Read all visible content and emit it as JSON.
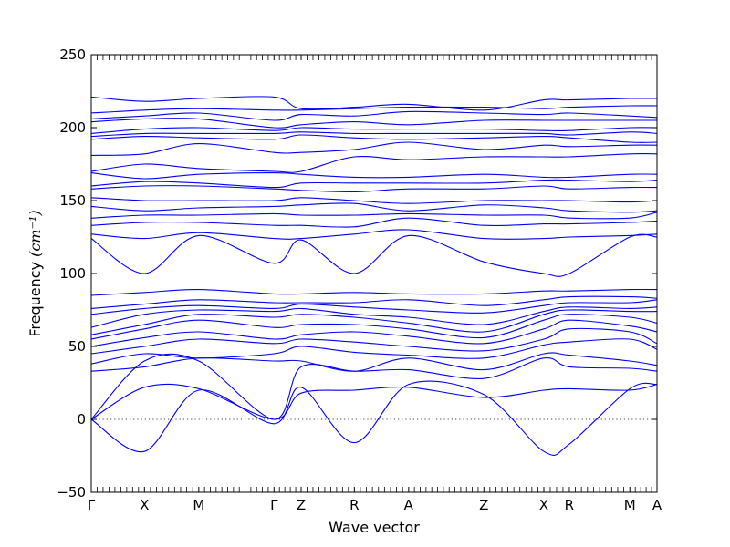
{
  "chart_data": {
    "type": "line",
    "title": "",
    "xlabel": "Wave vector",
    "ylabel": "Frequency",
    "ylabel_unit_tex": "(cm⁻¹)",
    "ylim": [
      -50,
      250
    ],
    "yticks": [
      -50,
      0,
      50,
      100,
      150,
      200,
      250
    ],
    "grid": false,
    "legend": "none",
    "line_color": "#0000ff",
    "zero_line": {
      "y": 0,
      "style": "dotted"
    },
    "high_symmetry_points": [
      {
        "label": "Γ",
        "path_pos": 0.0
      },
      {
        "label": "X",
        "path_pos": 0.094
      },
      {
        "label": "M",
        "path_pos": 0.19
      },
      {
        "label": "Γ",
        "path_pos": 0.323
      },
      {
        "label": "Z",
        "path_pos": 0.371
      },
      {
        "label": "R",
        "path_pos": 0.465
      },
      {
        "label": "A",
        "path_pos": 0.561
      },
      {
        "label": "Z",
        "path_pos": 0.694
      },
      {
        "label": "X",
        "path_pos": 0.8
      },
      {
        "label": "R",
        "path_pos": 0.845
      },
      {
        "label": "M",
        "path_pos": 0.952
      },
      {
        "label": "A",
        "path_pos": 1.0
      }
    ],
    "bands": [
      {
        "x": [
          0,
          0.094,
          0.19,
          0.323,
          0.371,
          0.465,
          0.561,
          0.694,
          0.8,
          0.845,
          0.952,
          1
        ],
        "y": [
          0,
          -22,
          20,
          -3,
          22,
          -16,
          24,
          17,
          -22,
          -17,
          21,
          24
        ]
      },
      {
        "x": [
          0,
          0.094,
          0.19,
          0.323,
          0.371,
          0.465,
          0.561,
          0.694,
          0.8,
          0.845,
          0.952,
          1
        ],
        "y": [
          0,
          22,
          21,
          0,
          18,
          20,
          22,
          15,
          20,
          21,
          20,
          24
        ]
      },
      {
        "x": [
          0,
          0.094,
          0.19,
          0.323,
          0.371,
          0.465,
          0.561,
          0.694,
          0.8,
          0.845,
          0.952,
          1
        ],
        "y": [
          0,
          40,
          40,
          0,
          36,
          33,
          34,
          28,
          42,
          36,
          35,
          33
        ]
      },
      {
        "x": [
          0,
          0.094,
          0.19,
          0.323,
          0.371,
          0.465,
          0.561,
          0.694,
          0.8,
          0.845,
          0.952,
          1
        ],
        "y": [
          33,
          36,
          42,
          40,
          40,
          33,
          42,
          34,
          45,
          44,
          40,
          37
        ]
      },
      {
        "x": [
          0,
          0.094,
          0.19,
          0.323,
          0.371,
          0.465,
          0.561,
          0.694,
          0.8,
          0.845,
          0.952,
          1
        ],
        "y": [
          38,
          45,
          42,
          45,
          50,
          46,
          44,
          42,
          51,
          53,
          55,
          48
        ]
      },
      {
        "x": [
          0,
          0.094,
          0.19,
          0.323,
          0.371,
          0.465,
          0.561,
          0.694,
          0.8,
          0.845,
          0.952,
          1
        ],
        "y": [
          45,
          50,
          55,
          52,
          55,
          53,
          50,
          47,
          55,
          62,
          60,
          52
        ]
      },
      {
        "x": [
          0,
          0.094,
          0.19,
          0.323,
          0.371,
          0.465,
          0.561,
          0.694,
          0.8,
          0.845,
          0.952,
          1
        ],
        "y": [
          50,
          56,
          60,
          55,
          58,
          60,
          57,
          52,
          62,
          68,
          64,
          60
        ]
      },
      {
        "x": [
          0,
          0.094,
          0.19,
          0.323,
          0.371,
          0.465,
          0.561,
          0.694,
          0.8,
          0.845,
          0.952,
          1
        ],
        "y": [
          55,
          62,
          68,
          63,
          65,
          65,
          62,
          56,
          68,
          72,
          70,
          66
        ]
      },
      {
        "x": [
          0,
          0.094,
          0.19,
          0.323,
          0.371,
          0.465,
          0.561,
          0.694,
          0.8,
          0.845,
          0.952,
          1
        ],
        "y": [
          58,
          65,
          72,
          70,
          72,
          70,
          66,
          60,
          72,
          75,
          74,
          74
        ]
      },
      {
        "x": [
          0,
          0.094,
          0.19,
          0.323,
          0.371,
          0.465,
          0.561,
          0.694,
          0.8,
          0.845,
          0.952,
          1
        ],
        "y": [
          63,
          72,
          75,
          74,
          76,
          72,
          70,
          65,
          74,
          77,
          76,
          77
        ]
      },
      {
        "x": [
          0,
          0.094,
          0.19,
          0.323,
          0.371,
          0.465,
          0.561,
          0.694,
          0.8,
          0.845,
          0.952,
          1
        ],
        "y": [
          72,
          76,
          78,
          76,
          79,
          77,
          75,
          73,
          78,
          80,
          80,
          82
        ]
      },
      {
        "x": [
          0,
          0.094,
          0.19,
          0.323,
          0.371,
          0.465,
          0.561,
          0.694,
          0.8,
          0.845,
          0.952,
          1
        ],
        "y": [
          76,
          79,
          82,
          80,
          80,
          80,
          82,
          78,
          82,
          84,
          84,
          83
        ]
      },
      {
        "x": [
          0,
          0.094,
          0.19,
          0.323,
          0.371,
          0.465,
          0.561,
          0.694,
          0.8,
          0.845,
          0.952,
          1
        ],
        "y": [
          85,
          87,
          89,
          86,
          86,
          87,
          86,
          86,
          88,
          88,
          89,
          89
        ]
      },
      {
        "x": [
          0,
          0.094,
          0.19,
          0.323,
          0.371,
          0.465,
          0.561,
          0.694,
          0.8,
          0.845,
          0.952,
          1
        ],
        "y": [
          124,
          100,
          126,
          107,
          123,
          100,
          126,
          108,
          100,
          100,
          125,
          125
        ]
      },
      {
        "x": [
          0,
          0.094,
          0.19,
          0.323,
          0.371,
          0.465,
          0.561,
          0.694,
          0.8,
          0.845,
          0.952,
          1
        ],
        "y": [
          127,
          124,
          128,
          124,
          124,
          127,
          130,
          124,
          124,
          125,
          126,
          127
        ]
      },
      {
        "x": [
          0,
          0.094,
          0.19,
          0.323,
          0.371,
          0.465,
          0.561,
          0.694,
          0.8,
          0.845,
          0.952,
          1
        ],
        "y": [
          133,
          135,
          135,
          133,
          133,
          132,
          138,
          133,
          134,
          134,
          135,
          136
        ]
      },
      {
        "x": [
          0,
          0.094,
          0.19,
          0.323,
          0.371,
          0.465,
          0.561,
          0.694,
          0.8,
          0.845,
          0.952,
          1
        ],
        "y": [
          138,
          140,
          140,
          141,
          140,
          140,
          141,
          140,
          140,
          138,
          138,
          142
        ]
      },
      {
        "x": [
          0,
          0.094,
          0.19,
          0.323,
          0.371,
          0.465,
          0.561,
          0.694,
          0.8,
          0.845,
          0.952,
          1
        ],
        "y": [
          146,
          143,
          145,
          146,
          147,
          148,
          143,
          147,
          145,
          143,
          142,
          143
        ]
      },
      {
        "x": [
          0,
          0.094,
          0.19,
          0.323,
          0.371,
          0.465,
          0.561,
          0.694,
          0.8,
          0.845,
          0.952,
          1
        ],
        "y": [
          152,
          150,
          150,
          150,
          152,
          150,
          148,
          150,
          150,
          150,
          149,
          150
        ]
      },
      {
        "x": [
          0,
          0.094,
          0.19,
          0.323,
          0.371,
          0.465,
          0.561,
          0.694,
          0.8,
          0.845,
          0.952,
          1
        ],
        "y": [
          158,
          160,
          160,
          158,
          157,
          156,
          158,
          158,
          160,
          158,
          159,
          159
        ]
      },
      {
        "x": [
          0,
          0.094,
          0.19,
          0.323,
          0.371,
          0.465,
          0.561,
          0.694,
          0.8,
          0.845,
          0.952,
          1
        ],
        "y": [
          160,
          163,
          162,
          159,
          162,
          162,
          162,
          162,
          164,
          164,
          163,
          164
        ]
      },
      {
        "x": [
          0,
          0.094,
          0.19,
          0.323,
          0.371,
          0.465,
          0.561,
          0.694,
          0.8,
          0.845,
          0.952,
          1
        ],
        "y": [
          169,
          165,
          168,
          169,
          168,
          166,
          166,
          168,
          166,
          166,
          168,
          168
        ]
      },
      {
        "x": [
          0,
          0.094,
          0.19,
          0.323,
          0.371,
          0.465,
          0.561,
          0.694,
          0.8,
          0.845,
          0.952,
          1
        ],
        "y": [
          170,
          175,
          172,
          170,
          170,
          180,
          178,
          180,
          180,
          180,
          182,
          182
        ]
      },
      {
        "x": [
          0,
          0.094,
          0.19,
          0.323,
          0.371,
          0.465,
          0.561,
          0.694,
          0.8,
          0.845,
          0.952,
          1
        ],
        "y": [
          181,
          182,
          189,
          183,
          183,
          185,
          190,
          185,
          188,
          187,
          188,
          188
        ]
      },
      {
        "x": [
          0,
          0.094,
          0.19,
          0.323,
          0.371,
          0.465,
          0.561,
          0.694,
          0.8,
          0.845,
          0.952,
          1
        ],
        "y": [
          192,
          194,
          193,
          192,
          195,
          193,
          192,
          193,
          194,
          193,
          190,
          190
        ]
      },
      {
        "x": [
          0,
          0.094,
          0.19,
          0.323,
          0.371,
          0.465,
          0.561,
          0.694,
          0.8,
          0.845,
          0.952,
          1
        ],
        "y": [
          194,
          196,
          196,
          196,
          197,
          196,
          196,
          196,
          196,
          195,
          197,
          196
        ]
      },
      {
        "x": [
          0,
          0.094,
          0.19,
          0.323,
          0.371,
          0.465,
          0.561,
          0.694,
          0.8,
          0.845,
          0.952,
          1
        ],
        "y": [
          196,
          199,
          200,
          198,
          200,
          199,
          199,
          199,
          198,
          198,
          200,
          200
        ]
      },
      {
        "x": [
          0,
          0.094,
          0.19,
          0.323,
          0.371,
          0.465,
          0.561,
          0.694,
          0.8,
          0.845,
          0.952,
          1
        ],
        "y": [
          204,
          206,
          206,
          200,
          202,
          204,
          202,
          205,
          205,
          205,
          205,
          205
        ]
      },
      {
        "x": [
          0,
          0.094,
          0.19,
          0.323,
          0.371,
          0.465,
          0.561,
          0.694,
          0.8,
          0.845,
          0.952,
          1
        ],
        "y": [
          206,
          208,
          210,
          205,
          209,
          208,
          211,
          210,
          209,
          210,
          208,
          207
        ]
      },
      {
        "x": [
          0,
          0.094,
          0.19,
          0.323,
          0.371,
          0.465,
          0.561,
          0.694,
          0.8,
          0.845,
          0.952,
          1
        ],
        "y": [
          210,
          212,
          213,
          212,
          212,
          213,
          214,
          214,
          213,
          214,
          215,
          215
        ]
      },
      {
        "x": [
          0,
          0.094,
          0.19,
          0.323,
          0.371,
          0.465,
          0.561,
          0.694,
          0.8,
          0.845,
          0.952,
          1
        ],
        "y": [
          221,
          218,
          220,
          221,
          213,
          214,
          216,
          212,
          219,
          219,
          220,
          220
        ]
      }
    ]
  }
}
